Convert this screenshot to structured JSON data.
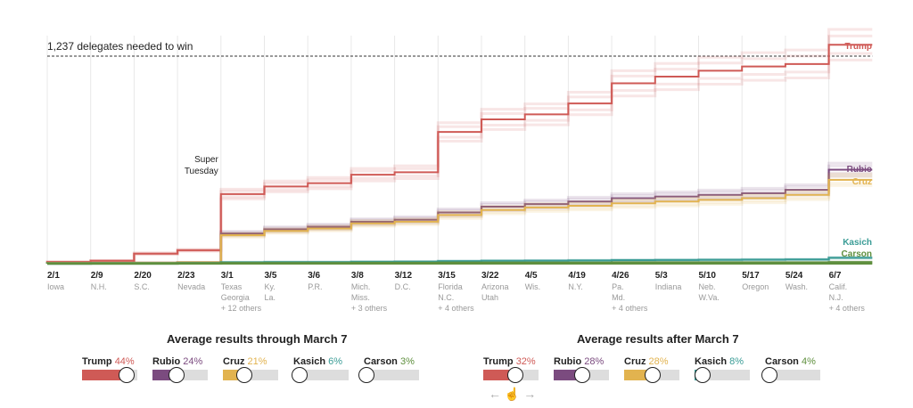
{
  "chart_data": {
    "type": "line",
    "threshold": {
      "value": 1237,
      "label": "1,237 delegates needed to win"
    },
    "annotation": {
      "date": "3/1",
      "text": [
        "Super",
        "Tuesday"
      ]
    },
    "ylim": [
      0,
      1450
    ],
    "dates": [
      {
        "date": "2/1",
        "states": [
          "Iowa"
        ]
      },
      {
        "date": "2/9",
        "states": [
          "N.H."
        ]
      },
      {
        "date": "2/20",
        "states": [
          "S.C."
        ]
      },
      {
        "date": "2/23",
        "states": [
          "Nevada"
        ]
      },
      {
        "date": "3/1",
        "states": [
          "Texas",
          "Georgia",
          "+ 12 others"
        ]
      },
      {
        "date": "3/5",
        "states": [
          "Ky.",
          "La."
        ]
      },
      {
        "date": "3/6",
        "states": [
          "P.R."
        ]
      },
      {
        "date": "3/8",
        "states": [
          "Mich.",
          "Miss.",
          "+ 3 others"
        ]
      },
      {
        "date": "3/12",
        "states": [
          "D.C."
        ]
      },
      {
        "date": "3/15",
        "states": [
          "Florida",
          "N.C.",
          "+ 4 others"
        ]
      },
      {
        "date": "3/22",
        "states": [
          "Arizona",
          "Utah"
        ]
      },
      {
        "date": "4/5",
        "states": [
          "Wis."
        ]
      },
      {
        "date": "4/19",
        "states": [
          "N.Y."
        ]
      },
      {
        "date": "4/26",
        "states": [
          "Pa.",
          "Md.",
          "+ 4 others"
        ]
      },
      {
        "date": "5/3",
        "states": [
          "Indiana"
        ]
      },
      {
        "date": "5/10",
        "states": [
          "Neb.",
          "W.Va."
        ]
      },
      {
        "date": "5/17",
        "states": [
          "Oregon"
        ]
      },
      {
        "date": "5/24",
        "states": [
          "Wash."
        ]
      },
      {
        "date": "6/7",
        "states": [
          "Calif.",
          "N.J.",
          "+ 4 others"
        ]
      }
    ],
    "series": [
      {
        "name": "Trump",
        "color": "#cf5a56",
        "values": [
          10,
          17,
          60,
          80,
          415,
          460,
          480,
          530,
          545,
          785,
          860,
          890,
          955,
          1075,
          1115,
          1150,
          1175,
          1190,
          1305
        ]
      },
      {
        "name": "Rubio",
        "color": "#7b4b7f",
        "values": [
          2,
          3,
          5,
          7,
          180,
          205,
          220,
          250,
          262,
          305,
          340,
          355,
          370,
          390,
          400,
          410,
          420,
          440,
          560
        ]
      },
      {
        "name": "Cruz",
        "color": "#e2b34f",
        "values": [
          3,
          4,
          5,
          7,
          170,
          195,
          210,
          240,
          250,
          290,
          320,
          335,
          345,
          360,
          370,
          380,
          390,
          410,
          500
        ]
      },
      {
        "name": "Kasich",
        "color": "#3a9c96",
        "values": [
          1,
          2,
          2,
          3,
          8,
          9,
          9,
          11,
          12,
          15,
          17,
          18,
          19,
          21,
          22,
          23,
          24,
          25,
          35
        ]
      },
      {
        "name": "Carson",
        "color": "#5f8f3e",
        "values": [
          1,
          1,
          1,
          2,
          4,
          4,
          4,
          5,
          5,
          6,
          6,
          6,
          6,
          7,
          7,
          7,
          7,
          7,
          9
        ]
      }
    ]
  },
  "controls": [
    {
      "title": "Average results through March 7",
      "sliders": [
        {
          "name": "Trump",
          "pct": "44%",
          "value": 44,
          "color": "#cf5a56"
        },
        {
          "name": "Rubio",
          "pct": "24%",
          "value": 24,
          "color": "#7b4b7f"
        },
        {
          "name": "Cruz",
          "pct": "21%",
          "value": 21,
          "color": "#e2b34f"
        },
        {
          "name": "Kasich",
          "pct": "6%",
          "value": 6,
          "color": "#3a9c96"
        },
        {
          "name": "Carson",
          "pct": "3%",
          "value": 3,
          "color": "#5f8f3e"
        }
      ]
    },
    {
      "title": "Average results after March 7",
      "sliders": [
        {
          "name": "Trump",
          "pct": "32%",
          "value": 32,
          "color": "#cf5a56"
        },
        {
          "name": "Rubio",
          "pct": "28%",
          "value": 28,
          "color": "#7b4b7f"
        },
        {
          "name": "Cruz",
          "pct": "28%",
          "value": 28,
          "color": "#e2b34f"
        },
        {
          "name": "Kasich",
          "pct": "8%",
          "value": 8,
          "color": "#3a9c96"
        },
        {
          "name": "Carson",
          "pct": "4%",
          "value": 4,
          "color": "#5f8f3e"
        }
      ]
    }
  ],
  "hint_icons": [
    "arrow-left-icon",
    "hand-pointer-icon",
    "arrow-right-icon"
  ]
}
